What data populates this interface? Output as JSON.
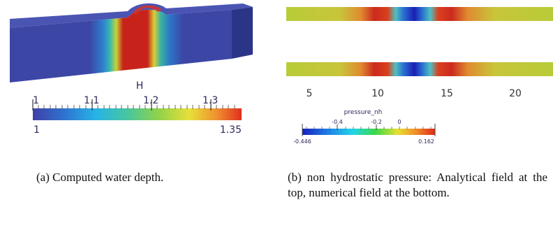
{
  "panel_a": {
    "colorbar_title": "H",
    "ticks": [
      "1",
      "1.1",
      "1.2",
      "1.3"
    ],
    "min_label": "1",
    "max_label": "1.35",
    "caption": "(a) Computed water depth."
  },
  "panel_b": {
    "axis_ticks": [
      "5",
      "10",
      "15",
      "20"
    ],
    "colorbar_title": "pressure_nh",
    "ticks": [
      "-0.4",
      "-0.2",
      "0"
    ],
    "min_label": "-0.446",
    "max_label": "0.162",
    "caption": "(b) non hydrostatic pressure: Analytical field at the top, numerical field at the bottom."
  },
  "colors": {
    "background": "#ffffff",
    "deep_blue": "#3a46a4",
    "red": "#c8231b"
  }
}
